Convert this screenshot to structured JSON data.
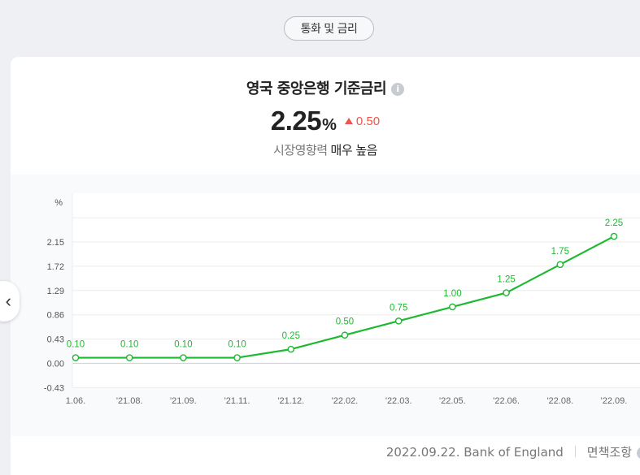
{
  "tab": {
    "label": "통화 및 금리"
  },
  "card": {
    "title": "영국 중앙은행 기준금리",
    "rate": "2.25",
    "unit": "%",
    "change": "0.50",
    "influence_label": "시장영향력",
    "influence_value": "매우 높음"
  },
  "footer": {
    "source": "2022.09.22. Bank of England",
    "disclaimer": "면책조항"
  },
  "colors": {
    "line": "#1db930",
    "up": "#f0544a"
  },
  "chart_data": {
    "type": "line",
    "ylabel": "%",
    "yticks": [
      "2.15",
      "1.72",
      "1.29",
      "0.86",
      "0.43",
      "0.00",
      "-0.43"
    ],
    "ylim": [
      -0.43,
      2.58
    ],
    "categories": [
      "'21.06.",
      "'21.08.",
      "'21.09.",
      "'21.11.",
      "'21.12.",
      "'22.02.",
      "'22.03.",
      "'22.05.",
      "'22.06.",
      "'22.08.",
      "'22.09."
    ],
    "category_labels": [
      "1.06.",
      "'21.08.",
      "'21.09.",
      "'21.11.",
      "'21.12.",
      "'22.02.",
      "'22.03.",
      "'22.05.",
      "'22.06.",
      "'22.08.",
      "'22.09."
    ],
    "series": [
      {
        "values": [
          0.1,
          0.1,
          0.1,
          0.1,
          0.25,
          0.5,
          0.75,
          1.0,
          1.25,
          1.75,
          2.25
        ],
        "labels": [
          "0.10",
          "0.10",
          "0.10",
          "0.10",
          "0.25",
          "0.50",
          "0.75",
          "1.00",
          "1.25",
          "1.75",
          "2.25"
        ]
      }
    ]
  }
}
